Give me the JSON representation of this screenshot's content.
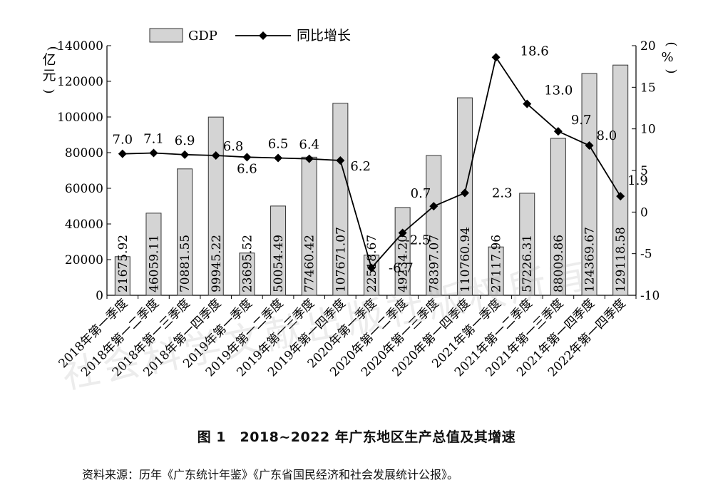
{
  "caption": "图 1　2018~2022 年广东地区生产总值及其增速",
  "source": "资料来源：历年《广东统计年鉴》《广东省国民经济和社会发展统计公报》。",
  "watermark": "社会科学文献出版社版权所有",
  "chart_data": {
    "type": "bar+line",
    "categories": [
      "2018年第一季度",
      "2018年第一二季度",
      "2018年第一三季度",
      "2018年第一四季度",
      "2019年第一季度",
      "2019年第一二季度",
      "2019年第一三季度",
      "2019年第一四季度",
      "2020年第一季度",
      "2020年第一二季度",
      "2020年第一三季度",
      "2020年第一四季度",
      "2021年第一季度",
      "2021年第一二季度",
      "2021年第一三季度",
      "2021年第一四季度",
      "2022年第一四季度"
    ],
    "bar_labels": [
      "21675.92",
      "46059.11",
      "70881.55",
      "99945.22",
      "23695.52",
      "50054.49",
      "77460.42",
      "107671.07",
      "22518.67",
      "49234.20",
      "78397.07",
      "110760.94",
      "27117.96",
      "57226.31",
      "88009.86",
      "124369.67",
      "129118.58"
    ],
    "line_labels": [
      "7.0",
      "7.1",
      "6.9",
      "6.8",
      "6.6",
      "6.5",
      "6.4",
      "6.2",
      "-6.7",
      "-2.5",
      "0.7",
      "2.3",
      "18.6",
      "13.0",
      "9.7",
      "8.0",
      "1.9"
    ],
    "series": [
      {
        "name": "GDP",
        "axis": "left",
        "values": [
          21675.92,
          46059.11,
          70881.55,
          99945.22,
          23695.52,
          50054.49,
          77460.42,
          107671.07,
          22518.67,
          49234.2,
          78397.07,
          110760.94,
          27117.96,
          57226.31,
          88009.86,
          124369.67,
          129118.58
        ]
      },
      {
        "name": "同比增长",
        "axis": "right",
        "values": [
          7.0,
          7.1,
          6.9,
          6.8,
          6.6,
          6.5,
          6.4,
          6.2,
          -6.7,
          -2.5,
          0.7,
          2.3,
          18.6,
          13.0,
          9.7,
          8.0,
          1.9
        ]
      }
    ],
    "left_axis": {
      "label": "亿元",
      "ylim": [
        0,
        140000
      ],
      "ticks": [
        "0",
        "20000",
        "40000",
        "60000",
        "80000",
        "100000",
        "120000",
        "140000"
      ]
    },
    "right_axis": {
      "label": "%",
      "ylim": [
        -10,
        20
      ],
      "ticks": [
        "-10",
        "-5",
        "0",
        "5",
        "10",
        "15",
        "20"
      ]
    },
    "colors": {
      "bar_fill": "#d4d4d4",
      "bar_stroke": "#333333",
      "line": "#000000"
    },
    "grid": false,
    "legend_position": "top"
  }
}
